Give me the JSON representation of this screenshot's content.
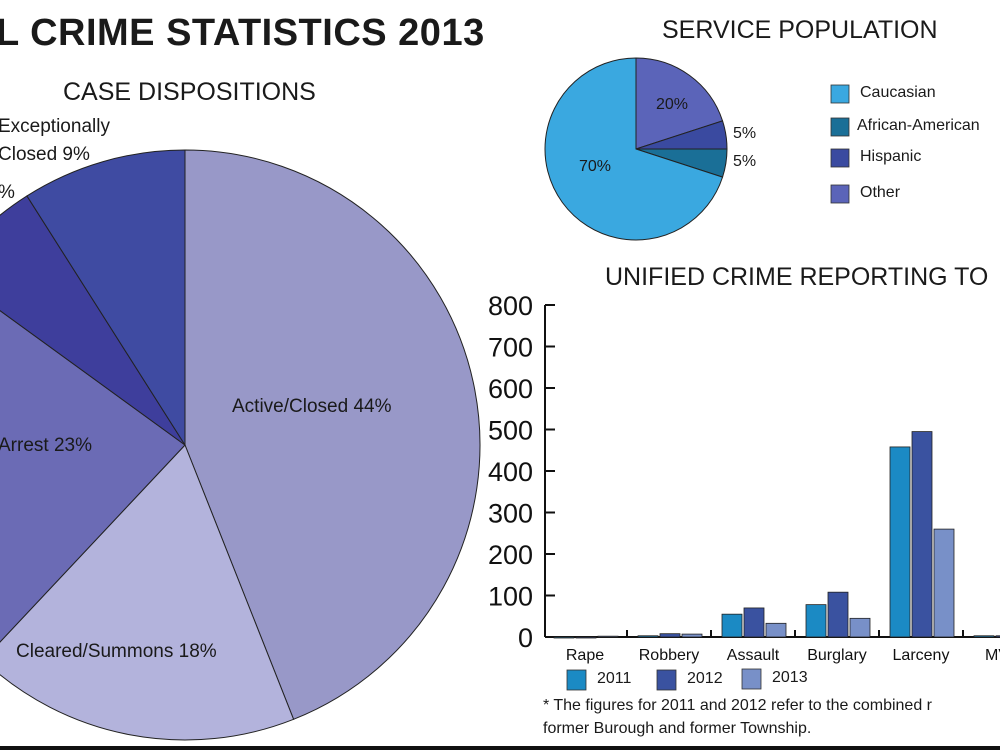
{
  "title": "L CRIME STATISTICS 2013",
  "colors": {
    "active_closed": "#9898c8",
    "cleared_summons": "#b3b3dc",
    "arrest": "#6b6bb5",
    "cut_slice": "#3e3e9c",
    "exceptionally_closed": "#3f4ba2",
    "caucasian": "#3aa8e0",
    "african_american": "#1a6f97",
    "hispanic": "#3a4aa0",
    "other": "#5b64b9",
    "s2011": "#1b8ac4",
    "s2012": "#3a52a0",
    "s2013": "#7890c8"
  },
  "chart_data": [
    {
      "type": "pie",
      "title": "CASE DISPOSITIONS",
      "slices": [
        {
          "label": "Active/Closed 44%",
          "value": 44
        },
        {
          "label": "Cleared/Summons 18%",
          "value": 18
        },
        {
          "label": "Arrest 23%",
          "value": 23
        },
        {
          "label": "%",
          "value": 6
        },
        {
          "label": "Exceptionally Closed 9%",
          "value": 9
        }
      ],
      "label_lines": {
        "exceptionally_1": "Exceptionally",
        "exceptionally_2": "Closed 9%"
      }
    },
    {
      "type": "pie",
      "title": "SERVICE POPULATION",
      "slices": [
        {
          "name": "Other",
          "value": 20,
          "label": "20%"
        },
        {
          "name": "Hispanic",
          "value": 5,
          "label": "5%"
        },
        {
          "name": "African-American",
          "value": 5,
          "label": "5%"
        },
        {
          "name": "Caucasian",
          "value": 70,
          "label": "70%"
        }
      ],
      "legend": [
        "Caucasian",
        "African-American",
        "Hispanic",
        "Other"
      ],
      "legend_placement": "right"
    },
    {
      "type": "bar",
      "title": "UNIFIED CRIME REPORTING TO",
      "categories": [
        "Rape",
        "Robbery",
        "Assault",
        "Burglary",
        "Larceny",
        "MV"
      ],
      "series": [
        {
          "name": "2011",
          "values": [
            0,
            3,
            55,
            78,
            458,
            3
          ]
        },
        {
          "name": "2012",
          "values": [
            0,
            8,
            70,
            108,
            495,
            3
          ]
        },
        {
          "name": "2013",
          "values": [
            2,
            7,
            33,
            45,
            260,
            null
          ]
        }
      ],
      "ylim": [
        0,
        800
      ],
      "yticks": [
        "0",
        "100",
        "200",
        "300",
        "400",
        "500",
        "600",
        "700",
        "800"
      ],
      "grid": false,
      "legend_placement": "bottom",
      "footnote": [
        "* The figures for 2011 and 2012 refer to the combined r",
        "former Burough and former Township."
      ]
    }
  ]
}
